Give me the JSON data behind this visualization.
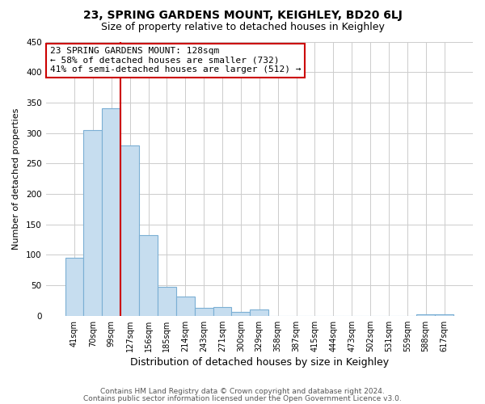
{
  "title": "23, SPRING GARDENS MOUNT, KEIGHLEY, BD20 6LJ",
  "subtitle": "Size of property relative to detached houses in Keighley",
  "xlabel": "Distribution of detached houses by size in Keighley",
  "ylabel": "Number of detached properties",
  "footer_line1": "Contains HM Land Registry data © Crown copyright and database right 2024.",
  "footer_line2": "Contains public sector information licensed under the Open Government Licence v3.0.",
  "categories": [
    "41sqm",
    "70sqm",
    "99sqm",
    "127sqm",
    "156sqm",
    "185sqm",
    "214sqm",
    "243sqm",
    "271sqm",
    "300sqm",
    "329sqm",
    "358sqm",
    "387sqm",
    "415sqm",
    "444sqm",
    "473sqm",
    "502sqm",
    "531sqm",
    "559sqm",
    "588sqm",
    "617sqm"
  ],
  "values": [
    95,
    305,
    341,
    280,
    132,
    47,
    31,
    13,
    15,
    6,
    10,
    0,
    0,
    0,
    0,
    0,
    0,
    0,
    0,
    2,
    2
  ],
  "bar_color": "#c6ddef",
  "bar_edge_color": "#7bafd4",
  "vline_color": "#cc0000",
  "vline_x_index": 3,
  "annotation_line1": "23 SPRING GARDENS MOUNT: 128sqm",
  "annotation_line2": "← 58% of detached houses are smaller (732)",
  "annotation_line3": "41% of semi-detached houses are larger (512) →",
  "annotation_box_color": "#cc0000",
  "ylim_max": 450,
  "ytick_step": 50,
  "bg_color": "#ffffff",
  "grid_color": "#cccccc",
  "title_fontsize": 10,
  "subtitle_fontsize": 9,
  "xlabel_fontsize": 9,
  "ylabel_fontsize": 8,
  "tick_fontsize": 7,
  "footer_fontsize": 6.5,
  "annotation_fontsize": 8
}
